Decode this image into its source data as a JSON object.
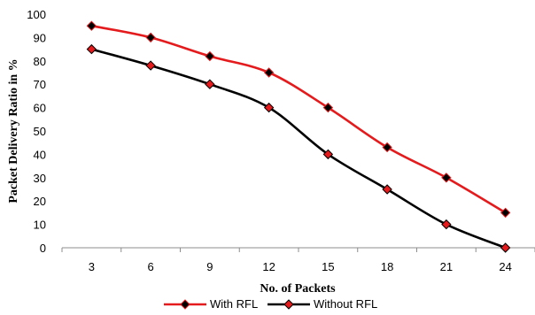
{
  "chart_data": {
    "type": "line",
    "title": "",
    "xlabel": "No. of Packets",
    "ylabel": "Packet Delivery Ratio in %",
    "x": [
      "3",
      "6",
      "9",
      "12",
      "15",
      "18",
      "21",
      "24"
    ],
    "ylim": [
      0,
      100
    ],
    "yticks": [
      0,
      10,
      20,
      30,
      40,
      50,
      60,
      70,
      80,
      90,
      100
    ],
    "grid": false,
    "legend_position": "bottom",
    "series": [
      {
        "name": "With RFL",
        "values": [
          95,
          90,
          82,
          75,
          60,
          43,
          30,
          15
        ],
        "line_color": "#e41a1c",
        "marker_color": "#000000"
      },
      {
        "name": "Without RFL",
        "values": [
          85,
          78,
          70,
          60,
          40,
          25,
          10,
          0
        ],
        "line_color": "#000000",
        "marker_color": "#e41a1c"
      }
    ]
  }
}
